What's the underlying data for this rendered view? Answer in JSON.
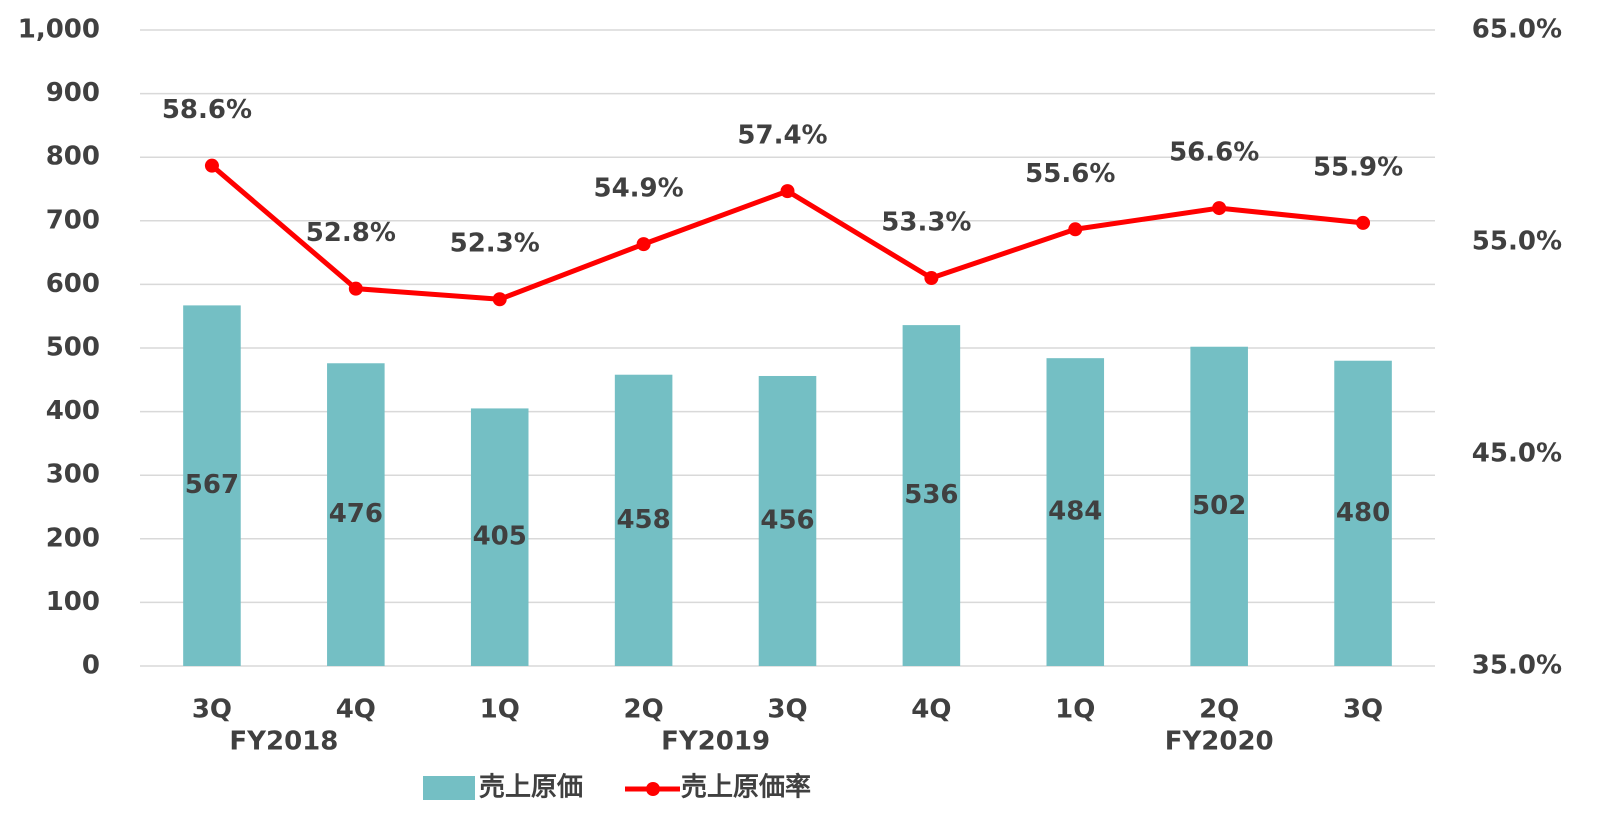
{
  "chart_data": {
    "type": "bar-line",
    "categories": [
      "3Q",
      "4Q",
      "1Q",
      "2Q",
      "3Q",
      "4Q",
      "1Q",
      "2Q",
      "3Q"
    ],
    "category_groups": [
      "FY2018",
      "FY2018",
      "FY2019",
      "FY2019",
      "FY2019",
      "FY2019",
      "FY2020",
      "FY2020",
      "FY2020"
    ],
    "series": [
      {
        "name": "売上原価",
        "type": "bar",
        "color": "#74bfc4",
        "values": [
          567,
          476,
          405,
          458,
          456,
          536,
          484,
          502,
          480
        ]
      },
      {
        "name": "売上原価率",
        "type": "line",
        "axis": "y2",
        "color": "#ff0000",
        "values": [
          58.6,
          52.8,
          52.3,
          54.9,
          57.4,
          53.3,
          55.6,
          56.6,
          55.9
        ],
        "value_labels": [
          "58.6%",
          "52.8%",
          "52.3%",
          "54.9%",
          "57.4%",
          "53.3%",
          "55.6%",
          "56.6%",
          "55.9%"
        ]
      }
    ],
    "ylim": [
      0,
      1000
    ],
    "yticks": [
      0,
      100,
      200,
      300,
      400,
      500,
      600,
      700,
      800,
      900,
      {
        "value": 1000,
        "label": "1,000"
      }
    ],
    "y2lim": [
      35,
      65
    ],
    "y2ticks": [
      {
        "value": 35,
        "label": "35.0%"
      },
      {
        "value": 45,
        "label": "45.0%"
      },
      {
        "value": 55,
        "label": "55.0%"
      },
      {
        "value": 65,
        "label": "65.0%"
      }
    ],
    "grid": true,
    "legend": "bottom"
  }
}
